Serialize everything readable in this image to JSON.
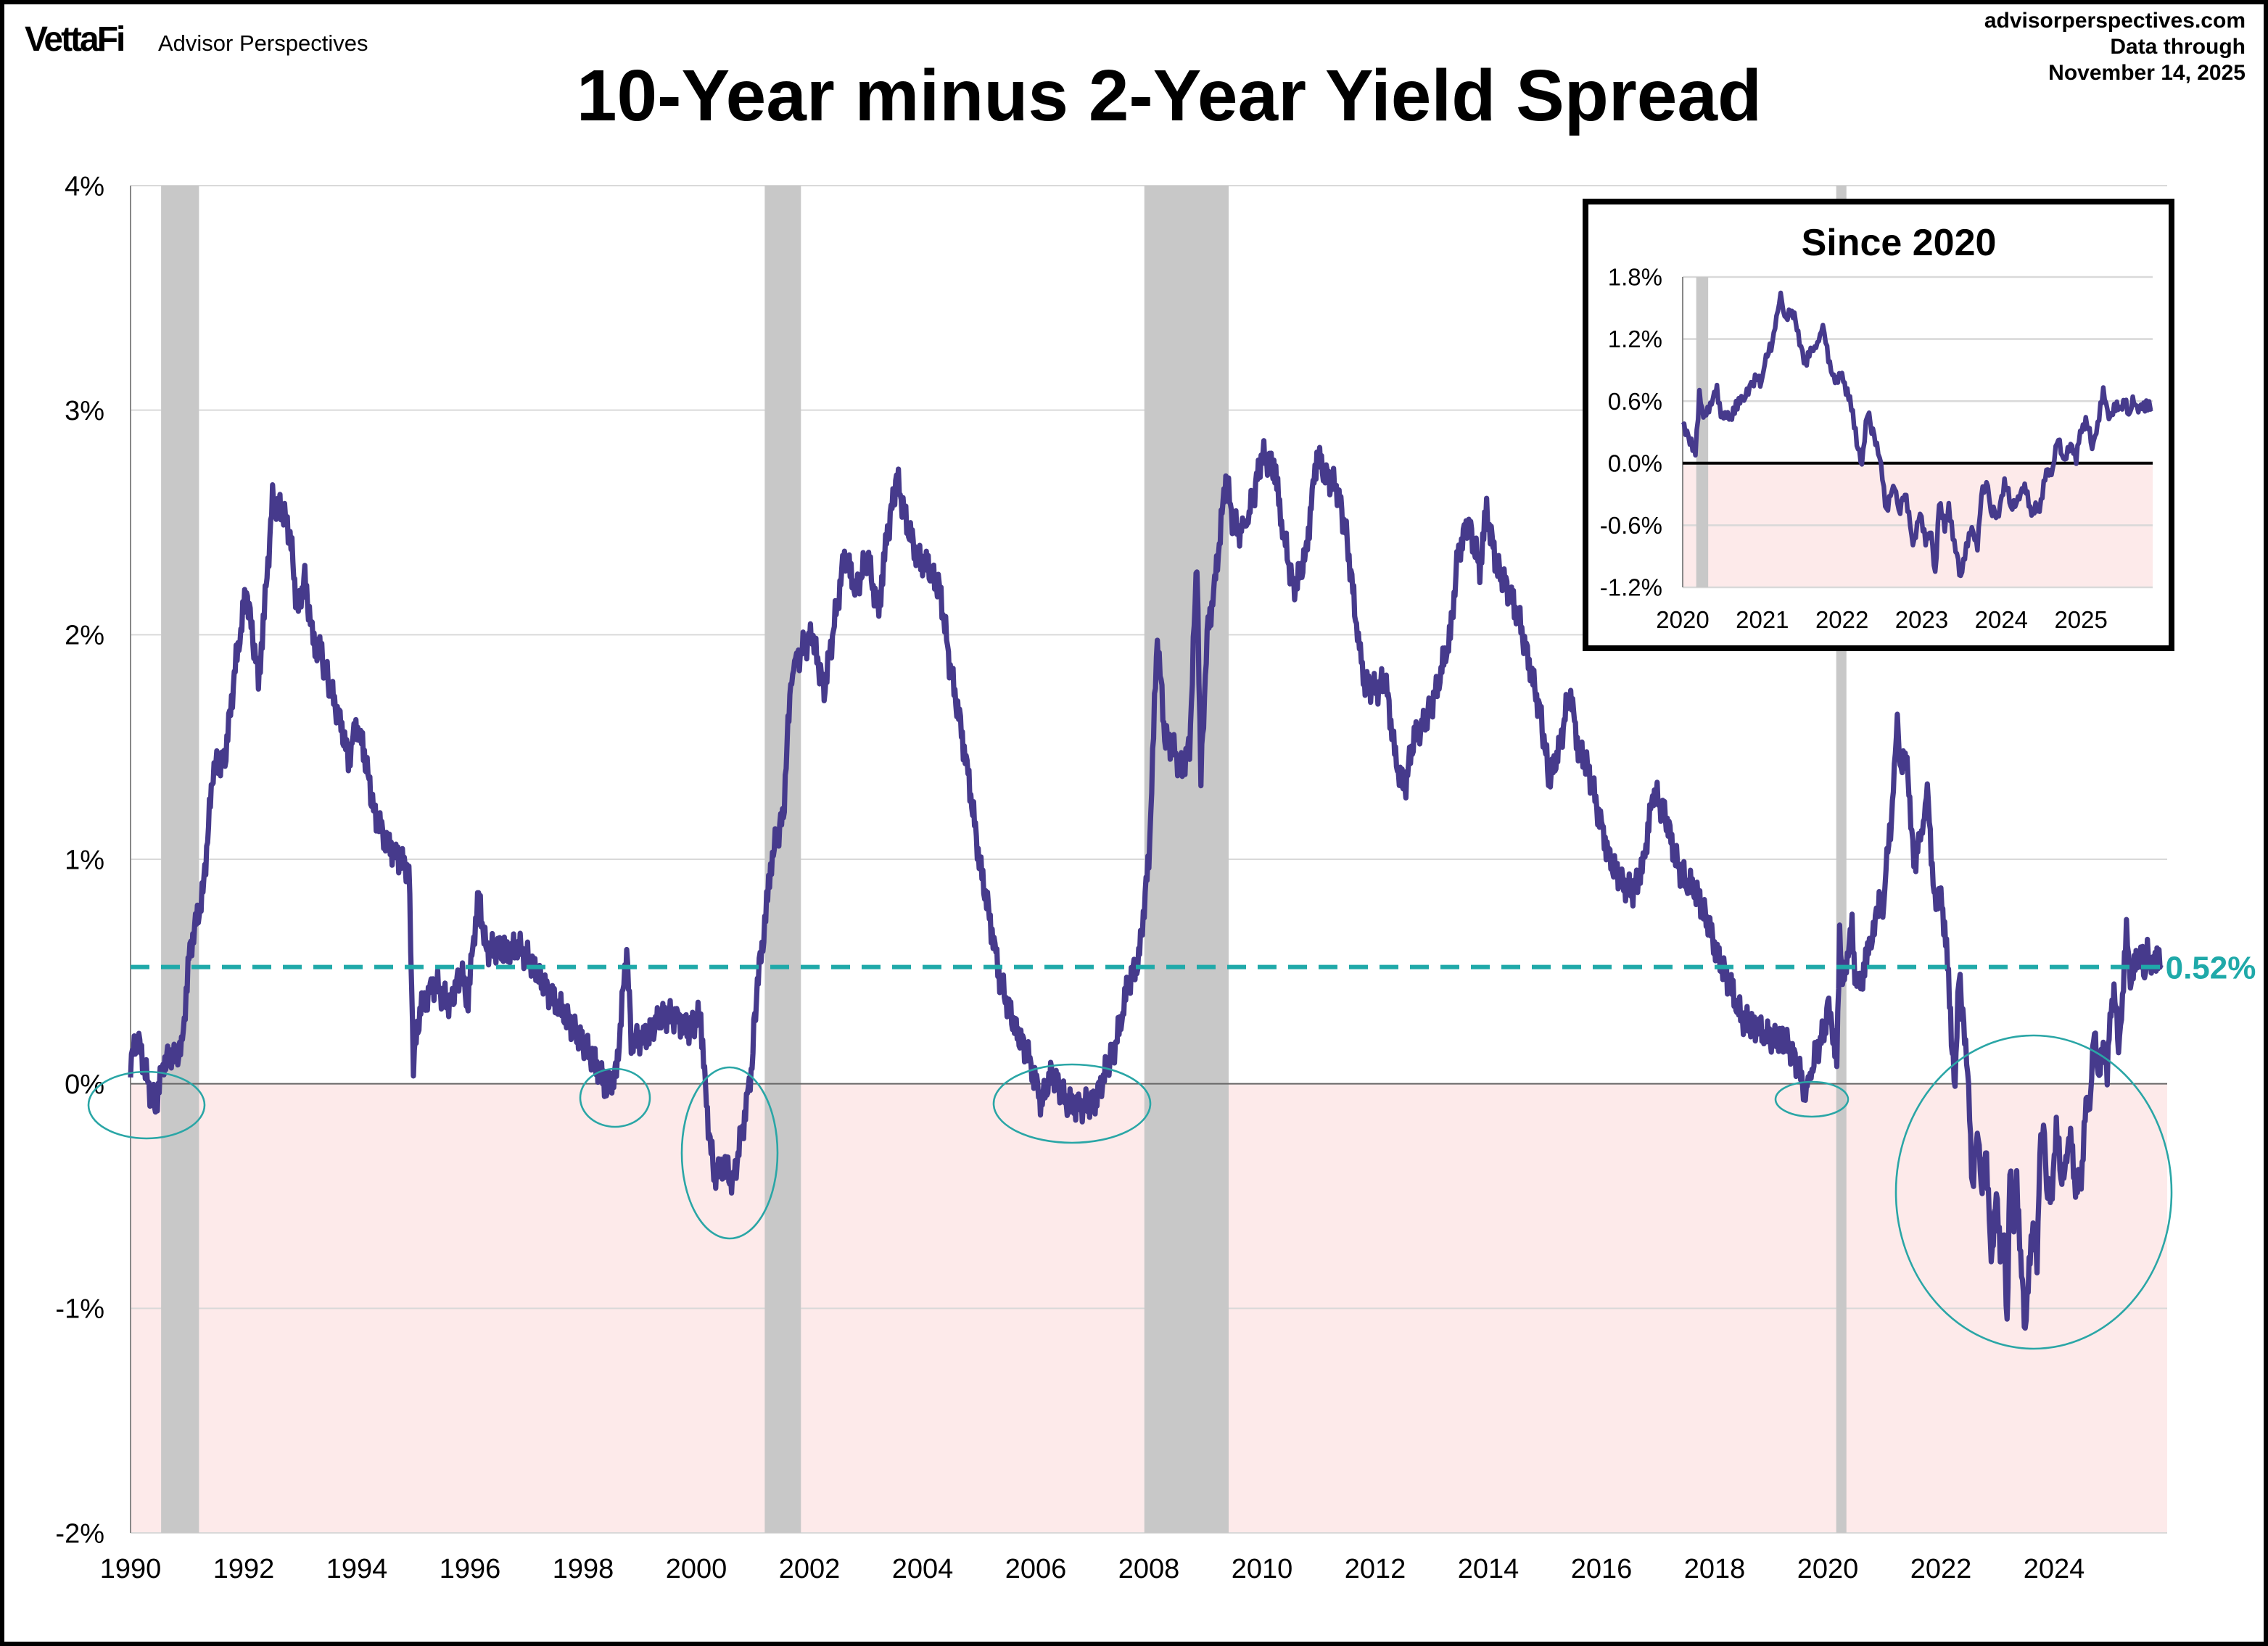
{
  "header": {
    "logo_text": "VettaFi",
    "brand": "Advisor Perspectives",
    "site": "advisorperspectives.com",
    "data_through_label": "Data through",
    "data_through_date": "November 14, 2025"
  },
  "colors": {
    "series_line": "#463a8c",
    "average_line": "#1fa9a9",
    "annotation_circle": "#2aa6a6",
    "recession_band": "#c8c8c8",
    "negative_zone": "#fdeaea",
    "gridline": "#d9d9d9"
  },
  "chart_data": [
    {
      "type": "line",
      "title": "10-Year minus 2-Year Yield Spread",
      "xlabel": "",
      "ylabel": "",
      "xlim": [
        1990,
        2026
      ],
      "ylim": [
        -2,
        4
      ],
      "x_ticks": [
        "1990",
        "1992",
        "1994",
        "1996",
        "1998",
        "2000",
        "2002",
        "2004",
        "2006",
        "2008",
        "2010",
        "2012",
        "2014",
        "2016",
        "2018",
        "2020",
        "2022",
        "2024"
      ],
      "y_ticks": [
        "-2%",
        "-1%",
        "0%",
        "1%",
        "2%",
        "3%",
        "4%"
      ],
      "y_tick_values": [
        -2,
        -1,
        0,
        1,
        2,
        3,
        4
      ],
      "grid": true,
      "negative_region_shaded": true,
      "recessions": [
        [
          1990.54,
          1991.21
        ],
        [
          2001.21,
          2001.85
        ],
        [
          2007.92,
          2009.41
        ],
        [
          2020.15,
          2020.33
        ]
      ],
      "average": {
        "value": 0.52,
        "label": "0.52%"
      },
      "inversion_annotations": [
        "1990",
        "1998",
        "2000",
        "2006-2007",
        "2019",
        "2022-2024"
      ],
      "series": [
        {
          "points": [
            [
              1990.0,
              0.1
            ],
            [
              1990.13,
              0.2
            ],
            [
              1990.31,
              0.0
            ],
            [
              1990.44,
              -0.1
            ],
            [
              1990.59,
              0.1
            ],
            [
              1990.9,
              0.15
            ],
            [
              1991.05,
              0.6
            ],
            [
              1991.28,
              0.85
            ],
            [
              1991.46,
              1.4
            ],
            [
              1991.67,
              1.45
            ],
            [
              1991.85,
              1.85
            ],
            [
              1992.05,
              2.2
            ],
            [
              1992.26,
              1.8
            ],
            [
              1992.38,
              2.15
            ],
            [
              1992.51,
              2.6
            ],
            [
              1992.69,
              2.55
            ],
            [
              1992.82,
              2.45
            ],
            [
              1992.95,
              2.1
            ],
            [
              1993.08,
              2.25
            ],
            [
              1993.21,
              2.0
            ],
            [
              1993.38,
              1.9
            ],
            [
              1993.54,
              1.75
            ],
            [
              1993.72,
              1.6
            ],
            [
              1993.85,
              1.45
            ],
            [
              1994.0,
              1.6
            ],
            [
              1994.15,
              1.45
            ],
            [
              1994.31,
              1.2
            ],
            [
              1994.49,
              1.1
            ],
            [
              1994.74,
              1.0
            ],
            [
              1994.92,
              0.95
            ],
            [
              1995.0,
              0.1
            ],
            [
              1995.13,
              0.35
            ],
            [
              1995.38,
              0.45
            ],
            [
              1995.64,
              0.35
            ],
            [
              1995.85,
              0.5
            ],
            [
              1995.95,
              0.35
            ],
            [
              1996.15,
              0.85
            ],
            [
              1996.28,
              0.6
            ],
            [
              1996.54,
              0.6
            ],
            [
              1996.92,
              0.6
            ],
            [
              1997.18,
              0.5
            ],
            [
              1997.44,
              0.38
            ],
            [
              1997.69,
              0.3
            ],
            [
              1997.95,
              0.2
            ],
            [
              1998.21,
              0.1
            ],
            [
              1998.41,
              -0.02
            ],
            [
              1998.59,
              0.05
            ],
            [
              1998.77,
              0.6
            ],
            [
              1998.85,
              0.2
            ],
            [
              1999.1,
              0.2
            ],
            [
              1999.36,
              0.3
            ],
            [
              1999.62,
              0.3
            ],
            [
              1999.87,
              0.25
            ],
            [
              2000.08,
              0.3
            ],
            [
              2000.18,
              -0.1
            ],
            [
              2000.31,
              -0.4
            ],
            [
              2000.51,
              -0.35
            ],
            [
              2000.64,
              -0.45
            ],
            [
              2000.82,
              -0.2
            ],
            [
              2000.97,
              0.05
            ],
            [
              2001.08,
              0.45
            ],
            [
              2001.21,
              0.7
            ],
            [
              2001.33,
              1.0
            ],
            [
              2001.54,
              1.2
            ],
            [
              2001.67,
              1.8
            ],
            [
              2001.79,
              1.9
            ],
            [
              2002.05,
              2.0
            ],
            [
              2002.26,
              1.75
            ],
            [
              2002.44,
              2.05
            ],
            [
              2002.62,
              2.35
            ],
            [
              2002.82,
              2.2
            ],
            [
              2003.03,
              2.35
            ],
            [
              2003.21,
              2.1
            ],
            [
              2003.38,
              2.45
            ],
            [
              2003.54,
              2.7
            ],
            [
              2003.72,
              2.5
            ],
            [
              2003.9,
              2.35
            ],
            [
              2004.1,
              2.3
            ],
            [
              2004.31,
              2.2
            ],
            [
              2004.49,
              1.85
            ],
            [
              2004.67,
              1.6
            ],
            [
              2004.82,
              1.35
            ],
            [
              2005.0,
              1.0
            ],
            [
              2005.18,
              0.75
            ],
            [
              2005.38,
              0.45
            ],
            [
              2005.64,
              0.25
            ],
            [
              2005.9,
              0.1
            ],
            [
              2006.1,
              -0.08
            ],
            [
              2006.28,
              0.05
            ],
            [
              2006.54,
              -0.08
            ],
            [
              2006.79,
              -0.1
            ],
            [
              2007.05,
              -0.08
            ],
            [
              2007.23,
              0.05
            ],
            [
              2007.44,
              0.2
            ],
            [
              2007.64,
              0.45
            ],
            [
              2007.82,
              0.55
            ],
            [
              2008.0,
              1.0
            ],
            [
              2008.15,
              2.0
            ],
            [
              2008.28,
              1.55
            ],
            [
              2008.41,
              1.5
            ],
            [
              2008.59,
              1.4
            ],
            [
              2008.72,
              1.5
            ],
            [
              2008.85,
              2.35
            ],
            [
              2008.92,
              1.35
            ],
            [
              2009.03,
              2.0
            ],
            [
              2009.18,
              2.25
            ],
            [
              2009.36,
              2.7
            ],
            [
              2009.49,
              2.5
            ],
            [
              2009.62,
              2.45
            ],
            [
              2009.79,
              2.55
            ],
            [
              2010.0,
              2.8
            ],
            [
              2010.21,
              2.75
            ],
            [
              2010.38,
              2.45
            ],
            [
              2010.56,
              2.2
            ],
            [
              2010.77,
              2.35
            ],
            [
              2010.97,
              2.8
            ],
            [
              2011.15,
              2.7
            ],
            [
              2011.33,
              2.65
            ],
            [
              2011.49,
              2.45
            ],
            [
              2011.67,
              2.05
            ],
            [
              2011.79,
              1.8
            ],
            [
              2012.0,
              1.75
            ],
            [
              2012.18,
              1.8
            ],
            [
              2012.36,
              1.45
            ],
            [
              2012.51,
              1.3
            ],
            [
              2012.69,
              1.55
            ],
            [
              2012.87,
              1.6
            ],
            [
              2013.08,
              1.75
            ],
            [
              2013.33,
              2.0
            ],
            [
              2013.46,
              2.35
            ],
            [
              2013.64,
              2.5
            ],
            [
              2013.85,
              2.3
            ],
            [
              2013.97,
              2.55
            ],
            [
              2014.15,
              2.3
            ],
            [
              2014.36,
              2.2
            ],
            [
              2014.56,
              2.05
            ],
            [
              2014.74,
              1.85
            ],
            [
              2014.92,
              1.65
            ],
            [
              2015.08,
              1.35
            ],
            [
              2015.26,
              1.5
            ],
            [
              2015.44,
              1.75
            ],
            [
              2015.59,
              1.5
            ],
            [
              2015.77,
              1.4
            ],
            [
              2015.95,
              1.2
            ],
            [
              2016.15,
              1.0
            ],
            [
              2016.36,
              0.9
            ],
            [
              2016.54,
              0.85
            ],
            [
              2016.72,
              0.95
            ],
            [
              2016.92,
              1.3
            ],
            [
              2017.13,
              1.2
            ],
            [
              2017.31,
              1.0
            ],
            [
              2017.49,
              0.9
            ],
            [
              2017.69,
              0.85
            ],
            [
              2017.9,
              0.7
            ],
            [
              2018.08,
              0.55
            ],
            [
              2018.26,
              0.45
            ],
            [
              2018.46,
              0.3
            ],
            [
              2018.72,
              0.25
            ],
            [
              2018.97,
              0.2
            ],
            [
              2019.23,
              0.2
            ],
            [
              2019.44,
              0.1
            ],
            [
              2019.62,
              -0.05
            ],
            [
              2019.74,
              0.1
            ],
            [
              2019.95,
              0.25
            ],
            [
              2020.0,
              0.36
            ],
            [
              2020.09,
              0.19
            ],
            [
              2020.16,
              0.13
            ],
            [
              2020.21,
              0.67
            ],
            [
              2020.26,
              0.41
            ],
            [
              2020.33,
              0.56
            ],
            [
              2020.43,
              0.69
            ],
            [
              2020.48,
              0.5
            ],
            [
              2020.6,
              0.41
            ],
            [
              2020.67,
              0.59
            ],
            [
              2020.77,
              0.61
            ],
            [
              2020.86,
              0.79
            ],
            [
              2020.99,
              0.81
            ],
            [
              2021.03,
              1.01
            ],
            [
              2021.11,
              1.1
            ],
            [
              2021.16,
              1.36
            ],
            [
              2021.23,
              1.6
            ],
            [
              2021.28,
              1.39
            ],
            [
              2021.37,
              1.51
            ],
            [
              2021.45,
              1.24
            ],
            [
              2021.54,
              0.99
            ],
            [
              2021.64,
              1.1
            ],
            [
              2021.76,
              1.3
            ],
            [
              2021.83,
              1.01
            ],
            [
              2021.93,
              0.76
            ],
            [
              2022.0,
              0.87
            ],
            [
              2022.1,
              0.59
            ],
            [
              2022.17,
              0.3
            ],
            [
              2022.25,
              -0.04
            ],
            [
              2022.3,
              0.39
            ],
            [
              2022.34,
              0.46
            ],
            [
              2022.42,
              0.19
            ],
            [
              2022.49,
              0.01
            ],
            [
              2022.56,
              -0.47
            ],
            [
              2022.66,
              -0.19
            ],
            [
              2022.73,
              -0.5
            ],
            [
              2022.79,
              -0.24
            ],
            [
              2022.89,
              -0.81
            ],
            [
              2022.98,
              -0.44
            ],
            [
              2023.05,
              -0.76
            ],
            [
              2023.12,
              -0.7
            ],
            [
              2023.17,
              -1.06
            ],
            [
              2023.22,
              -0.39
            ],
            [
              2023.29,
              -0.64
            ],
            [
              2023.34,
              -0.39
            ],
            [
              2023.41,
              -0.79
            ],
            [
              2023.49,
              -1.07
            ],
            [
              2023.56,
              -0.84
            ],
            [
              2023.63,
              -0.64
            ],
            [
              2023.7,
              -0.77
            ],
            [
              2023.75,
              -0.33
            ],
            [
              2023.83,
              -0.16
            ],
            [
              2023.87,
              -0.44
            ],
            [
              2023.95,
              -0.53
            ],
            [
              2024.04,
              -0.16
            ],
            [
              2024.12,
              -0.41
            ],
            [
              2024.21,
              -0.33
            ],
            [
              2024.31,
              -0.24
            ],
            [
              2024.38,
              -0.47
            ],
            [
              2024.48,
              -0.44
            ],
            [
              2024.55,
              -0.1
            ],
            [
              2024.63,
              -0.1
            ],
            [
              2024.7,
              0.24
            ],
            [
              2024.78,
              0.04
            ],
            [
              2024.87,
              0.19
            ],
            [
              2024.94,
              0.01
            ],
            [
              2024.99,
              0.33
            ],
            [
              2025.06,
              0.41
            ],
            [
              2025.14,
              0.19
            ],
            [
              2025.21,
              0.36
            ],
            [
              2025.28,
              0.67
            ],
            [
              2025.35,
              0.47
            ],
            [
              2025.45,
              0.53
            ],
            [
              2025.55,
              0.59
            ],
            [
              2025.6,
              0.44
            ],
            [
              2025.65,
              0.64
            ],
            [
              2025.72,
              0.5
            ],
            [
              2025.82,
              0.59
            ],
            [
              2025.89,
              0.53
            ]
          ]
        }
      ]
    },
    {
      "type": "line",
      "title": "Since 2020",
      "xlim": [
        2020,
        2025.9
      ],
      "ylim": [
        -1.2,
        1.8
      ],
      "x_ticks": [
        "2020",
        "2021",
        "2022",
        "2023",
        "2024",
        "2025"
      ],
      "y_ticks": [
        "-1.2%",
        "-0.6%",
        "0.0%",
        "0.6%",
        "1.2%",
        "1.8%"
      ],
      "y_tick_values": [
        -1.2,
        -0.6,
        0,
        0.6,
        1.2,
        1.8
      ],
      "grid": true,
      "negative_region_shaded": true,
      "recessions": [
        [
          2020.17,
          2020.32
        ]
      ],
      "series_source": "same series, from 2020"
    }
  ]
}
